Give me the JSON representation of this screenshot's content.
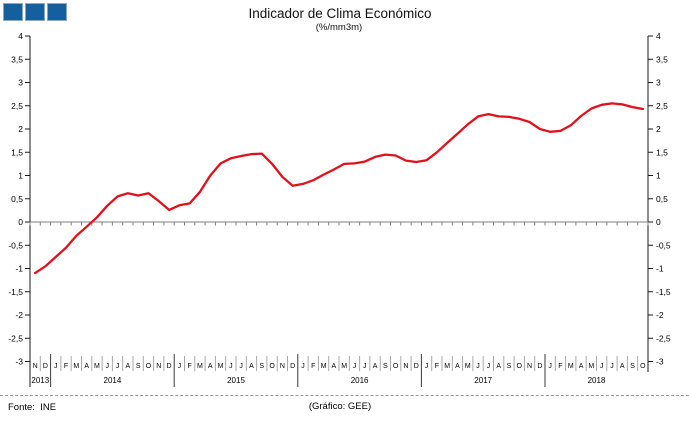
{
  "header": {
    "title": "Indicador de Clima Económico",
    "subtitle": "(%/mm3m)"
  },
  "footer": {
    "source": "Fonte:  INE",
    "credit": "(Gráfico: GEE)"
  },
  "colors": {
    "line": "#e0111a",
    "axis": "#1a1a1a",
    "zero_line": "#7f7f7f",
    "month_tick": "#7f7f7f",
    "month_separator": "#aaaaaa",
    "year_separator": "#3a3a3a",
    "logo_blue": "#14609e"
  },
  "chart_data": {
    "type": "line",
    "title": "Indicador de Clima Económico",
    "subtitle": "(%/mm3m)",
    "ylim": [
      -3,
      4
    ],
    "ytick_step": 0.5,
    "y_tick_labels": [
      "-3",
      "-2,5",
      "-2",
      "-1,5",
      "-1",
      "-0,5",
      "0",
      "0,5",
      "1",
      "1,5",
      "2",
      "2,5",
      "3",
      "3,5",
      "4"
    ],
    "dual_axis": true,
    "grid": "zero-line-only",
    "legend_position": "none",
    "years": [
      {
        "label": "2013",
        "months": 2
      },
      {
        "label": "2014",
        "months": 12
      },
      {
        "label": "2015",
        "months": 12
      },
      {
        "label": "2016",
        "months": 12
      },
      {
        "label": "2017",
        "months": 12
      },
      {
        "label": "2018",
        "months": 10
      }
    ],
    "month_letters": [
      "N",
      "D",
      "J",
      "F",
      "M",
      "A",
      "M",
      "J",
      "J",
      "A",
      "S",
      "O",
      "N",
      "D",
      "J",
      "F",
      "M",
      "A",
      "M",
      "J",
      "J",
      "A",
      "S",
      "O",
      "N",
      "D",
      "J",
      "F",
      "M",
      "A",
      "M",
      "J",
      "J",
      "A",
      "S",
      "O",
      "N",
      "D",
      "J",
      "F",
      "M",
      "A",
      "M",
      "J",
      "J",
      "A",
      "S",
      "O",
      "N",
      "D",
      "J",
      "F",
      "M",
      "A",
      "M",
      "J",
      "J",
      "A",
      "S",
      "O"
    ],
    "series": [
      {
        "name": "Indicador de Clima Económico",
        "color": "#e0111a",
        "values": [
          -1.1,
          -0.95,
          -0.75,
          -0.55,
          -0.3,
          -0.1,
          0.1,
          0.35,
          0.55,
          0.62,
          0.57,
          0.62,
          0.45,
          0.26,
          0.36,
          0.4,
          0.65,
          1.0,
          1.26,
          1.37,
          1.42,
          1.46,
          1.47,
          1.25,
          0.97,
          0.78,
          0.82,
          0.9,
          1.02,
          1.13,
          1.25,
          1.26,
          1.3,
          1.4,
          1.45,
          1.43,
          1.32,
          1.29,
          1.33,
          1.5,
          1.7,
          1.9,
          2.1,
          2.27,
          2.32,
          2.27,
          2.26,
          2.22,
          2.15,
          2.0,
          1.94,
          1.96,
          2.08,
          2.28,
          2.44,
          2.52,
          2.55,
          2.53,
          2.47,
          2.43
        ]
      }
    ]
  }
}
